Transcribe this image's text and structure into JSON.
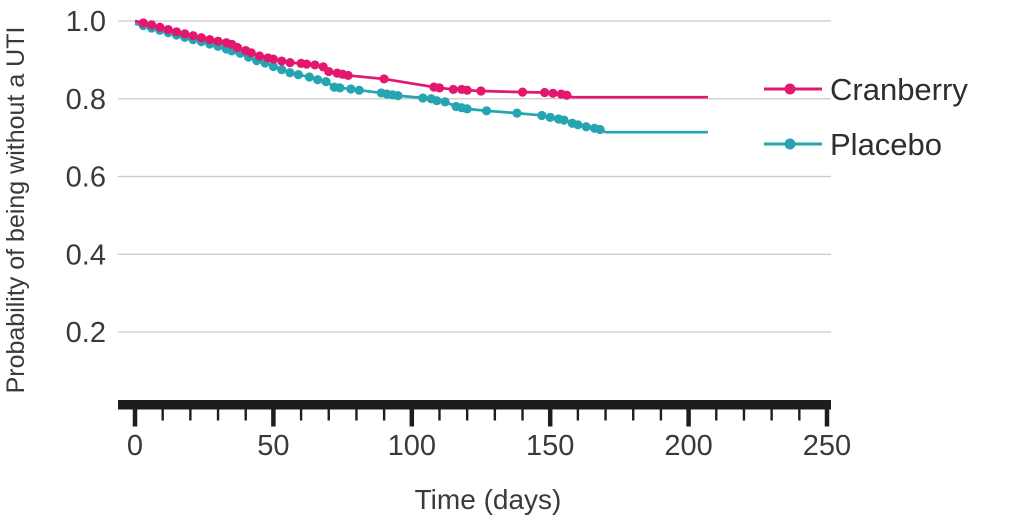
{
  "figure": {
    "background": "#ffffff",
    "text_color": "#3a3a3a",
    "axis_color": "#1d1d1d",
    "grid_color": "#c9c9c9"
  },
  "chart_data": {
    "type": "line",
    "subtype": "kaplan-meier-survival",
    "title": "",
    "xlabel": "Time (days)",
    "ylabel": "Probability of being without a UTI",
    "xlim": [
      0,
      250
    ],
    "ylim": [
      0,
      1.0
    ],
    "x_major_ticks": [
      0,
      50,
      100,
      150,
      200,
      250
    ],
    "x_major_tick_labels": [
      "0",
      "50",
      "100",
      "150",
      "200",
      "250"
    ],
    "x_minor_tick_step": 10,
    "y_ticks": [
      1.0,
      0.8,
      0.6,
      0.4,
      0.2
    ],
    "y_tick_labels": [
      "1.0",
      "0.8",
      "0.6",
      "0.4",
      "0.2"
    ],
    "grid": "horizontal",
    "legend_position": "right",
    "series": [
      {
        "name": "Cranberry",
        "color": "#e2176d",
        "points": [
          [
            0,
            1.0,
            0
          ],
          [
            3,
            0.995,
            1
          ],
          [
            6,
            0.99,
            1
          ],
          [
            9,
            0.984,
            1
          ],
          [
            12,
            0.978,
            1
          ],
          [
            15,
            0.972,
            1
          ],
          [
            18,
            0.967,
            1
          ],
          [
            21,
            0.962,
            1
          ],
          [
            24,
            0.957,
            1
          ],
          [
            27,
            0.952,
            1
          ],
          [
            30,
            0.948,
            1
          ],
          [
            33,
            0.944,
            1
          ],
          [
            35,
            0.94,
            1
          ],
          [
            37,
            0.932,
            1
          ],
          [
            40,
            0.924,
            1
          ],
          [
            42,
            0.918,
            1
          ],
          [
            45,
            0.91,
            1
          ],
          [
            48,
            0.905,
            1
          ],
          [
            50,
            0.902,
            1
          ],
          [
            53,
            0.897,
            1
          ],
          [
            56,
            0.893,
            1
          ],
          [
            60,
            0.891,
            1
          ],
          [
            62,
            0.889,
            1
          ],
          [
            65,
            0.887,
            1
          ],
          [
            68,
            0.882,
            1
          ],
          [
            70,
            0.87,
            1
          ],
          [
            73,
            0.866,
            1
          ],
          [
            75,
            0.863,
            1
          ],
          [
            77,
            0.86,
            1
          ],
          [
            90,
            0.851,
            1
          ],
          [
            108,
            0.83,
            1
          ],
          [
            110,
            0.828,
            1
          ],
          [
            115,
            0.824,
            1
          ],
          [
            118,
            0.824,
            1
          ],
          [
            120,
            0.822,
            1
          ],
          [
            125,
            0.82,
            1
          ],
          [
            140,
            0.817,
            1
          ],
          [
            148,
            0.816,
            1
          ],
          [
            151,
            0.814,
            1
          ],
          [
            154,
            0.812,
            1
          ],
          [
            156,
            0.809,
            1
          ],
          [
            158,
            0.804,
            0
          ],
          [
            207,
            0.804,
            0
          ]
        ]
      },
      {
        "name": "Placebo",
        "color": "#25a5b1",
        "points": [
          [
            0,
            0.993,
            0
          ],
          [
            3,
            0.988,
            1
          ],
          [
            6,
            0.982,
            1
          ],
          [
            9,
            0.976,
            1
          ],
          [
            12,
            0.97,
            1
          ],
          [
            15,
            0.964,
            1
          ],
          [
            18,
            0.958,
            1
          ],
          [
            21,
            0.952,
            1
          ],
          [
            24,
            0.947,
            1
          ],
          [
            27,
            0.941,
            1
          ],
          [
            30,
            0.935,
            1
          ],
          [
            33,
            0.928,
            1
          ],
          [
            35,
            0.923,
            1
          ],
          [
            38,
            0.917,
            1
          ],
          [
            41,
            0.907,
            1
          ],
          [
            44,
            0.898,
            1
          ],
          [
            47,
            0.892,
            1
          ],
          [
            50,
            0.883,
            1
          ],
          [
            53,
            0.875,
            1
          ],
          [
            56,
            0.867,
            1
          ],
          [
            59,
            0.862,
            1
          ],
          [
            63,
            0.856,
            1
          ],
          [
            66,
            0.849,
            1
          ],
          [
            69,
            0.844,
            1
          ],
          [
            72,
            0.83,
            1
          ],
          [
            74,
            0.828,
            1
          ],
          [
            78,
            0.825,
            1
          ],
          [
            81,
            0.822,
            1
          ],
          [
            89,
            0.815,
            1
          ],
          [
            91,
            0.812,
            1
          ],
          [
            93,
            0.81,
            1
          ],
          [
            95,
            0.808,
            1
          ],
          [
            104,
            0.802,
            1
          ],
          [
            107,
            0.8,
            1
          ],
          [
            109,
            0.795,
            1
          ],
          [
            112,
            0.792,
            1
          ],
          [
            116,
            0.78,
            1
          ],
          [
            118,
            0.777,
            1
          ],
          [
            120,
            0.774,
            1
          ],
          [
            127,
            0.769,
            1
          ],
          [
            138,
            0.763,
            1
          ],
          [
            147,
            0.757,
            1
          ],
          [
            150,
            0.752,
            1
          ],
          [
            153,
            0.748,
            1
          ],
          [
            155,
            0.745,
            1
          ],
          [
            158,
            0.737,
            1
          ],
          [
            160,
            0.733,
            1
          ],
          [
            163,
            0.728,
            1
          ],
          [
            166,
            0.724,
            1
          ],
          [
            168,
            0.721,
            1
          ],
          [
            170,
            0.714,
            0
          ],
          [
            207,
            0.714,
            0
          ]
        ]
      }
    ]
  }
}
